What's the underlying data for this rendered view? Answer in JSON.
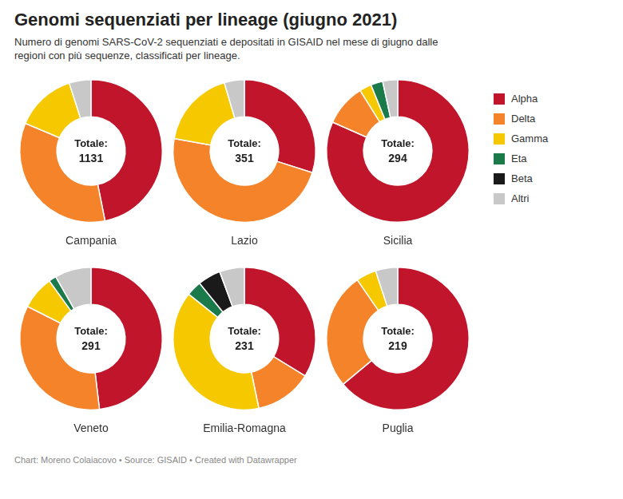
{
  "title": "Genomi sequenziati per lineage (giugno 2021)",
  "subtitle": "Numero di genomi SARS-CoV-2 sequenziati e depositati in GISAID nel mese di giugno dalle\nregioni con più sequenze, classificati per lineage.",
  "footer": "Chart: Moreno Colaiacovo • Source: GISAID • Created with Datawrapper",
  "chart_data": [
    {
      "type": "doughnut",
      "title": "Campania",
      "annotations": [
        "Totale:"
      ],
      "total": 1131,
      "categories": [
        "Alpha",
        "Delta",
        "Gamma",
        "Eta",
        "Beta",
        "Altri"
      ],
      "values": [
        530,
        390,
        155,
        0,
        0,
        56
      ],
      "colors": [
        "#c0152b",
        "#f4832a",
        "#f5c800",
        "#1a7a4a",
        "#1a1a1a",
        "#c8c8c8"
      ]
    },
    {
      "type": "doughnut",
      "title": "Lazio",
      "annotations": [
        "Totale:"
      ],
      "total": 351,
      "categories": [
        "Alpha",
        "Delta",
        "Gamma",
        "Eta",
        "Beta",
        "Altri"
      ],
      "values": [
        105,
        168,
        62,
        0,
        0,
        16
      ],
      "colors": [
        "#c0152b",
        "#f4832a",
        "#f5c800",
        "#1a7a4a",
        "#1a1a1a",
        "#c8c8c8"
      ]
    },
    {
      "type": "doughnut",
      "title": "Sicilia",
      "annotations": [
        "Totale:"
      ],
      "total": 294,
      "categories": [
        "Alpha",
        "Delta",
        "Gamma",
        "Eta",
        "Beta",
        "Altri"
      ],
      "values": [
        240,
        28,
        8,
        8,
        0,
        10
      ],
      "colors": [
        "#c0152b",
        "#f4832a",
        "#f5c800",
        "#1a7a4a",
        "#1a1a1a",
        "#c8c8c8"
      ]
    },
    {
      "type": "doughnut",
      "title": "Veneto",
      "annotations": [
        "Totale:"
      ],
      "total": 291,
      "categories": [
        "Alpha",
        "Delta",
        "Gamma",
        "Eta",
        "Beta",
        "Altri"
      ],
      "values": [
        140,
        100,
        22,
        5,
        0,
        24
      ],
      "colors": [
        "#c0152b",
        "#f4832a",
        "#f5c800",
        "#1a7a4a",
        "#1a1a1a",
        "#c8c8c8"
      ]
    },
    {
      "type": "doughnut",
      "title": "Emilia-Romagna",
      "annotations": [
        "Totale:"
      ],
      "total": 231,
      "categories": [
        "Alpha",
        "Delta",
        "Gamma",
        "Eta",
        "Beta",
        "Altri"
      ],
      "values": [
        78,
        30,
        90,
        8,
        12,
        13
      ],
      "colors": [
        "#c0152b",
        "#f4832a",
        "#f5c800",
        "#1a7a4a",
        "#1a1a1a",
        "#c8c8c8"
      ]
    },
    {
      "type": "doughnut",
      "title": "Puglia",
      "annotations": [
        "Totale:"
      ],
      "total": 219,
      "categories": [
        "Alpha",
        "Delta",
        "Gamma",
        "Eta",
        "Beta",
        "Altri"
      ],
      "values": [
        140,
        58,
        10,
        0,
        0,
        11
      ],
      "colors": [
        "#c0152b",
        "#f4832a",
        "#f5c800",
        "#1a7a4a",
        "#1a1a1a",
        "#c8c8c8"
      ]
    }
  ]
}
